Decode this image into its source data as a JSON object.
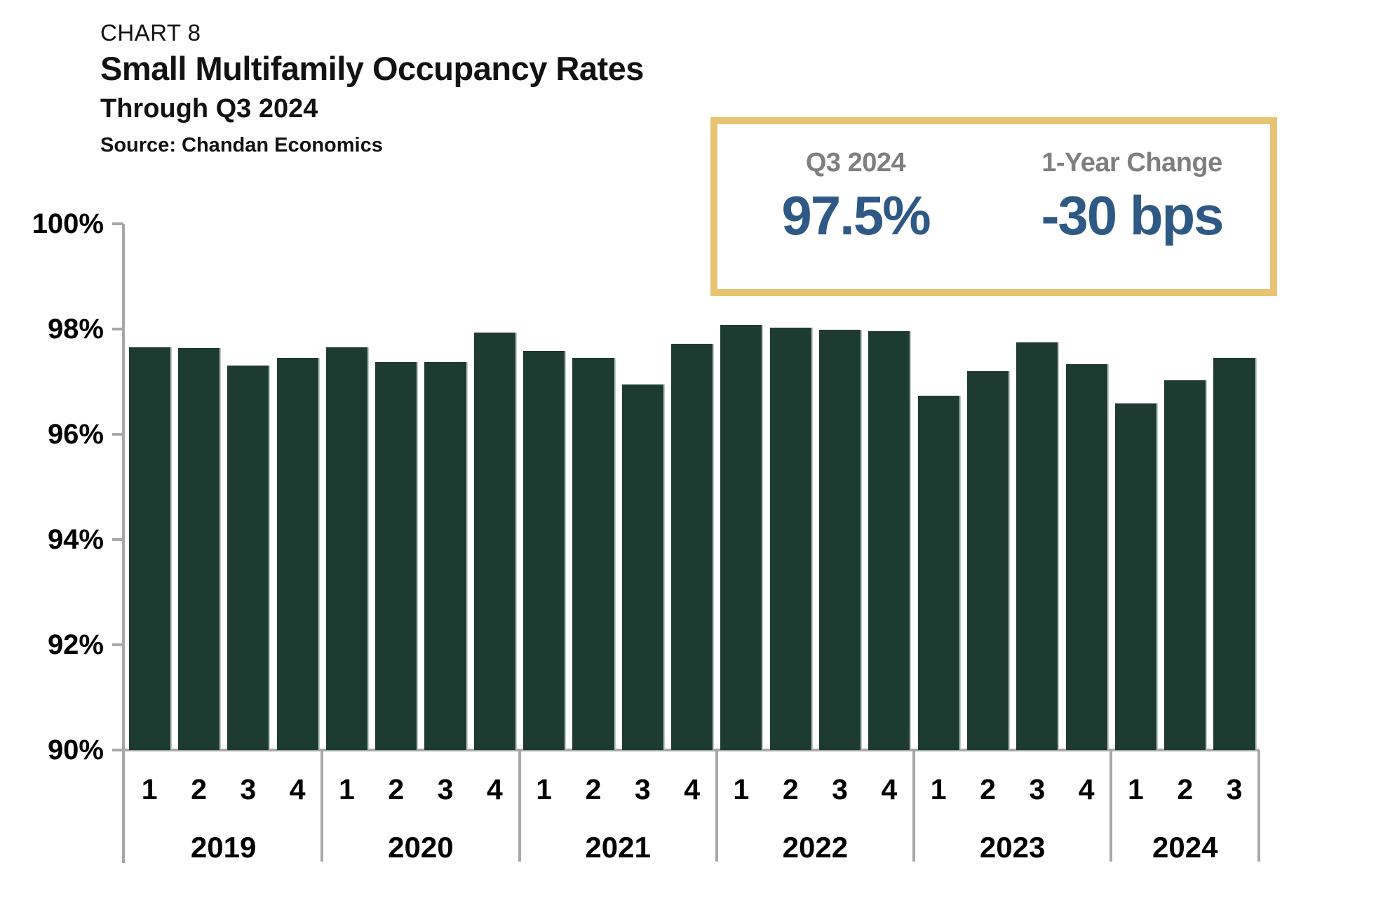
{
  "header": {
    "chart_number": "CHART 8",
    "title": "Small Multifamily Occupancy Rates",
    "subtitle": "Through Q3 2024",
    "source": "Source: Chandan Economics"
  },
  "callout": {
    "items": [
      {
        "label": "Q3 2024",
        "value": "97.5%"
      },
      {
        "label": "1-Year Change",
        "value": "-30 bps"
      }
    ]
  },
  "theme": {
    "bar_color": "#1d3b31",
    "axis_color": "#a8a8a8",
    "callout_border_color": "#e8c371",
    "callout_value_color": "#2e5984",
    "callout_label_color": "#7f7f7f"
  },
  "chart_data": {
    "type": "bar",
    "title": "Small Multifamily Occupancy Rates",
    "xlabel": "",
    "ylabel": "",
    "ylim": [
      90,
      100
    ],
    "grid": false,
    "legend": false,
    "yticks": [
      {
        "value": 100,
        "label": "100%"
      },
      {
        "value": 98,
        "label": "98%"
      },
      {
        "value": 96,
        "label": "96%"
      },
      {
        "value": 94,
        "label": "94%"
      },
      {
        "value": 92,
        "label": "92%"
      },
      {
        "value": 90,
        "label": "90%"
      }
    ],
    "groups": [
      {
        "year": "2019",
        "quarters": [
          "1",
          "2",
          "3",
          "4"
        ],
        "values": [
          97.65,
          97.64,
          97.31,
          97.45
        ]
      },
      {
        "year": "2020",
        "quarters": [
          "1",
          "2",
          "3",
          "4"
        ],
        "values": [
          97.66,
          97.37,
          97.37,
          97.93
        ]
      },
      {
        "year": "2021",
        "quarters": [
          "1",
          "2",
          "3",
          "4"
        ],
        "values": [
          97.59,
          97.45,
          96.95,
          97.72
        ]
      },
      {
        "year": "2022",
        "quarters": [
          "1",
          "2",
          "3",
          "4"
        ],
        "values": [
          98.08,
          98.03,
          97.99,
          97.96
        ]
      },
      {
        "year": "2023",
        "quarters": [
          "1",
          "2",
          "3",
          "4"
        ],
        "values": [
          96.73,
          97.2,
          97.75,
          97.34
        ]
      },
      {
        "year": "2024",
        "quarters": [
          "1",
          "2",
          "3"
        ],
        "values": [
          96.59,
          97.03,
          97.46
        ]
      }
    ]
  }
}
